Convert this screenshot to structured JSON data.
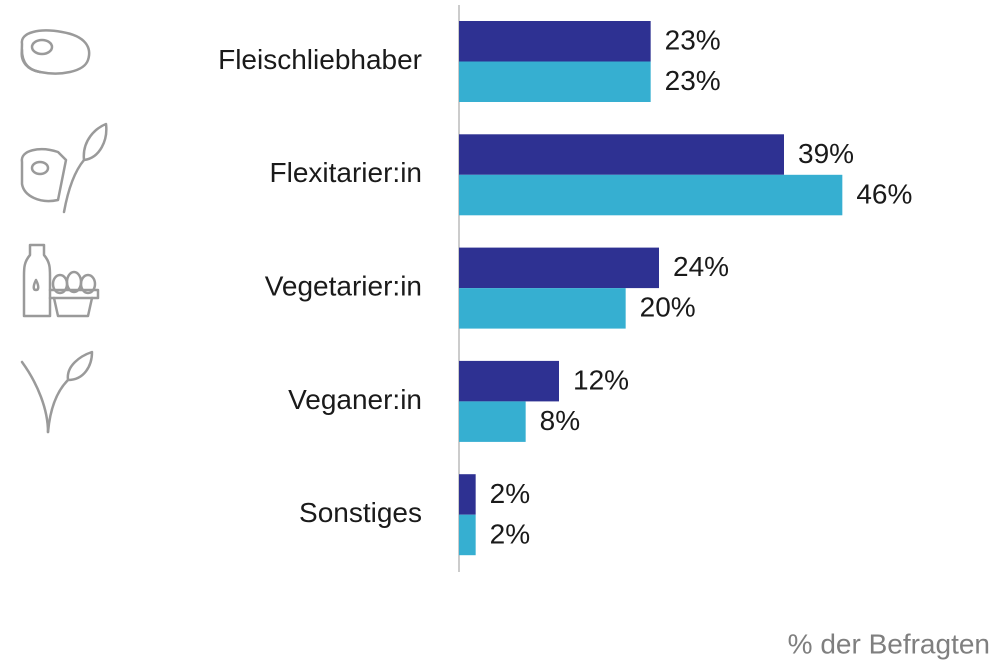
{
  "chart_data": {
    "type": "bar",
    "orientation": "horizontal",
    "categories": [
      "Fleischliebhaber",
      "Flexitarier:in",
      "Vegetarier:in",
      "Veganer:in",
      "Sonstiges"
    ],
    "series": [
      {
        "color": "#2e3192",
        "values": [
          23,
          39,
          24,
          12,
          2
        ],
        "value_labels": [
          "23%",
          "39%",
          "24%",
          "12%",
          "2%"
        ]
      },
      {
        "color": "#36afd1",
        "values": [
          23,
          46,
          20,
          8,
          2
        ],
        "value_labels": [
          "23%",
          "46%",
          "20%",
          "8%",
          "2%"
        ]
      }
    ],
    "xlim": [
      0,
      60
    ],
    "x_label": "% der Befragten"
  }
}
